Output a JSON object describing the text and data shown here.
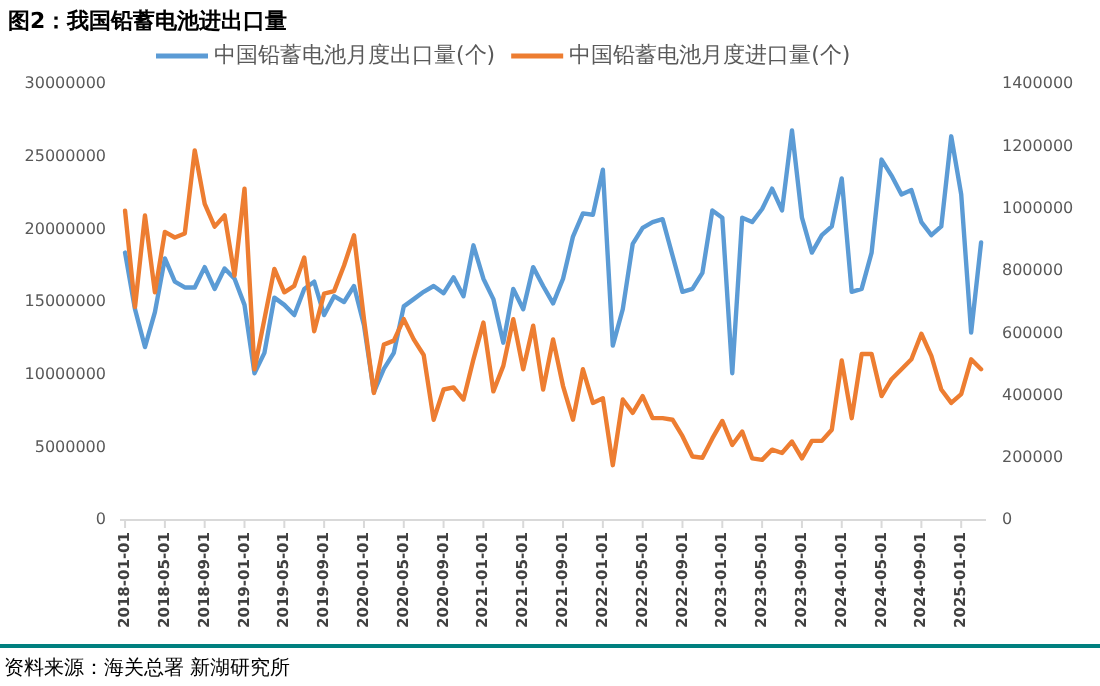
{
  "chart_data": {
    "type": "line",
    "title": "图2：我国铅蓄电池进出口量",
    "annotations": [
      "资料来源：海关总署 新湖研究所"
    ],
    "x": [
      "2018-01",
      "2018-02",
      "2018-03",
      "2018-04",
      "2018-05",
      "2018-06",
      "2018-07",
      "2018-08",
      "2018-09",
      "2018-10",
      "2018-11",
      "2018-12",
      "2019-01",
      "2019-02",
      "2019-03",
      "2019-04",
      "2019-05",
      "2019-06",
      "2019-07",
      "2019-08",
      "2019-09",
      "2019-10",
      "2019-11",
      "2019-12",
      "2020-01",
      "2020-02",
      "2020-03",
      "2020-04",
      "2020-05",
      "2020-06",
      "2020-07",
      "2020-08",
      "2020-09",
      "2020-10",
      "2020-11",
      "2020-12",
      "2021-01",
      "2021-02",
      "2021-03",
      "2021-04",
      "2021-05",
      "2021-06",
      "2021-07",
      "2021-08",
      "2021-09",
      "2021-10",
      "2021-11",
      "2021-12",
      "2022-01",
      "2022-02",
      "2022-03",
      "2022-04",
      "2022-05",
      "2022-06",
      "2022-07",
      "2022-08",
      "2022-09",
      "2022-10",
      "2022-11",
      "2022-12",
      "2023-01",
      "2023-02",
      "2023-03",
      "2023-04",
      "2023-05",
      "2023-06",
      "2023-07",
      "2023-08",
      "2023-09",
      "2023-10",
      "2023-11",
      "2023-12",
      "2024-01",
      "2024-02",
      "2024-03",
      "2024-04",
      "2024-05",
      "2024-06",
      "2024-07",
      "2024-08",
      "2024-09",
      "2024-10",
      "2024-11",
      "2024-12",
      "2025-01",
      "2025-02",
      "2025-03"
    ],
    "series": [
      {
        "name": "中国铅蓄电池月度出口量(个)",
        "color": "#5b9bd5",
        "values": [
          18400000,
          14500000,
          11900000,
          14300000,
          18000000,
          16400000,
          16000000,
          16000000,
          17400000,
          15900000,
          17300000,
          16600000,
          14800000,
          10100000,
          11500000,
          15300000,
          14800000,
          14100000,
          15900000,
          16400000,
          14100000,
          15400000,
          15000000,
          16100000,
          13400000,
          8800000,
          10400000,
          11500000,
          14700000,
          15200000,
          15700000,
          16100000,
          15600000,
          16700000,
          15400000,
          18900000,
          16600000,
          15200000,
          12200000,
          15900000,
          14500000,
          17400000,
          16100000,
          14900000,
          16600000,
          19500000,
          21100000,
          21000000,
          24100000,
          12000000,
          14500000,
          19000000,
          20100000,
          20500000,
          20700000,
          18200000,
          15700000,
          15900000,
          17000000,
          21300000,
          20800000,
          10100000,
          20800000,
          20500000,
          21400000,
          22800000,
          21300000,
          26800000,
          20800000,
          18400000,
          19600000,
          20200000,
          23500000,
          15700000,
          15900000,
          18400000,
          24800000,
          23700000,
          22400000,
          22700000,
          20500000,
          19600000,
          20200000,
          26400000,
          22400000,
          12900000,
          19100000
        ]
      },
      {
        "name": "中国铅蓄电池月度进口量(个)",
        "color": "#ed7d31",
        "axis": "y2",
        "values": [
          993000,
          684000,
          978000,
          731000,
          925000,
          907000,
          920000,
          1187000,
          1015000,
          942000,
          978000,
          785000,
          1064000,
          484000,
          645000,
          806000,
          731000,
          752000,
          843000,
          606000,
          727000,
          735000,
          817000,
          914000,
          645000,
          408000,
          563000,
          576000,
          645000,
          580000,
          530000,
          322000,
          419000,
          426000,
          387000,
          516000,
          634000,
          413000,
          495000,
          645000,
          484000,
          624000,
          419000,
          580000,
          430000,
          322000,
          484000,
          376000,
          391000,
          176000,
          387000,
          344000,
          398000,
          327000,
          327000,
          322000,
          269000,
          204000,
          200000,
          262000,
          318000,
          241000,
          284000,
          198000,
          193000,
          226000,
          215000,
          252000,
          198000,
          254000,
          254000,
          290000,
          512000,
          327000,
          533000,
          533000,
          398000,
          452000,
          484000,
          516000,
          598000,
          527000,
          419000,
          376000,
          404000,
          516000,
          484000
        ]
      }
    ],
    "xlim": [
      "2017-12-16",
      "2025-03-16"
    ],
    "xticks": [
      "2018-01-01",
      "2018-05-01",
      "2018-09-01",
      "2019-01-01",
      "2019-05-01",
      "2019-09-01",
      "2020-01-01",
      "2020-05-01",
      "2020-09-01",
      "2021-01-01",
      "2021-05-01",
      "2021-09-01",
      "2022-01-01",
      "2022-05-01",
      "2022-09-01",
      "2023-01-01",
      "2023-05-01",
      "2023-09-01",
      "2024-01-01",
      "2024-05-01",
      "2024-09-01",
      "2025-01-01"
    ],
    "ylim": [
      0,
      30000000
    ],
    "yticks": [
      0,
      5000000,
      10000000,
      15000000,
      20000000,
      25000000,
      30000000
    ],
    "y2lim": [
      0,
      1400000
    ],
    "y2ticks": [
      0,
      200000,
      400000,
      600000,
      800000,
      1000000,
      1200000,
      1400000
    ],
    "legend": "top",
    "marker": "none",
    "line_style": "solid"
  }
}
